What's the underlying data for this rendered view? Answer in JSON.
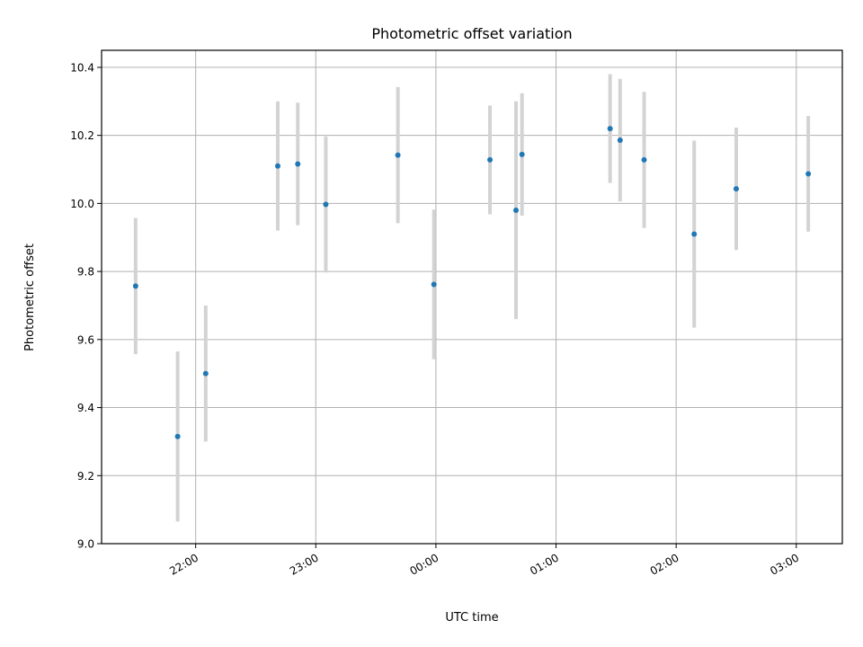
{
  "chart_data": {
    "type": "scatter",
    "title": "Photometric offset variation",
    "xlabel": "UTC time",
    "ylabel": "Photometric offset",
    "x_unit": "time (UTC)",
    "x_ticks": [
      "22:00",
      "23:00",
      "00:00",
      "01:00",
      "02:00",
      "03:00"
    ],
    "x_tick_hours": [
      22,
      23,
      24,
      25,
      26,
      27
    ],
    "xlim": [
      "21:13",
      "03:23"
    ],
    "ylim": [
      9.0,
      10.45
    ],
    "y_ticks": [
      "9.0",
      "9.2",
      "9.4",
      "9.6",
      "9.8",
      "10.0",
      "10.2",
      "10.4"
    ],
    "grid": true,
    "x": [
      "21:30",
      "21:51",
      "22:05",
      "22:41",
      "22:51",
      "23:05",
      "23:41",
      "23:59",
      "00:27",
      "00:40",
      "00:43",
      "01:27",
      "01:32",
      "01:44",
      "02:09",
      "02:30",
      "03:06"
    ],
    "values": [
      9.757,
      9.315,
      9.5,
      10.11,
      10.116,
      9.997,
      10.142,
      9.762,
      10.128,
      9.98,
      10.144,
      10.22,
      10.186,
      10.128,
      9.91,
      10.043,
      10.087
    ],
    "yerr": [
      0.2,
      0.25,
      0.2,
      0.19,
      0.18,
      0.2,
      0.2,
      0.22,
      0.16,
      0.32,
      0.18,
      0.16,
      0.18,
      0.2,
      0.275,
      0.18,
      0.17
    ],
    "colors": {
      "points": "#1f77b4",
      "errorbars": "#d3d3d3",
      "grid": "#b0b0b0",
      "axes": "#000000"
    }
  }
}
